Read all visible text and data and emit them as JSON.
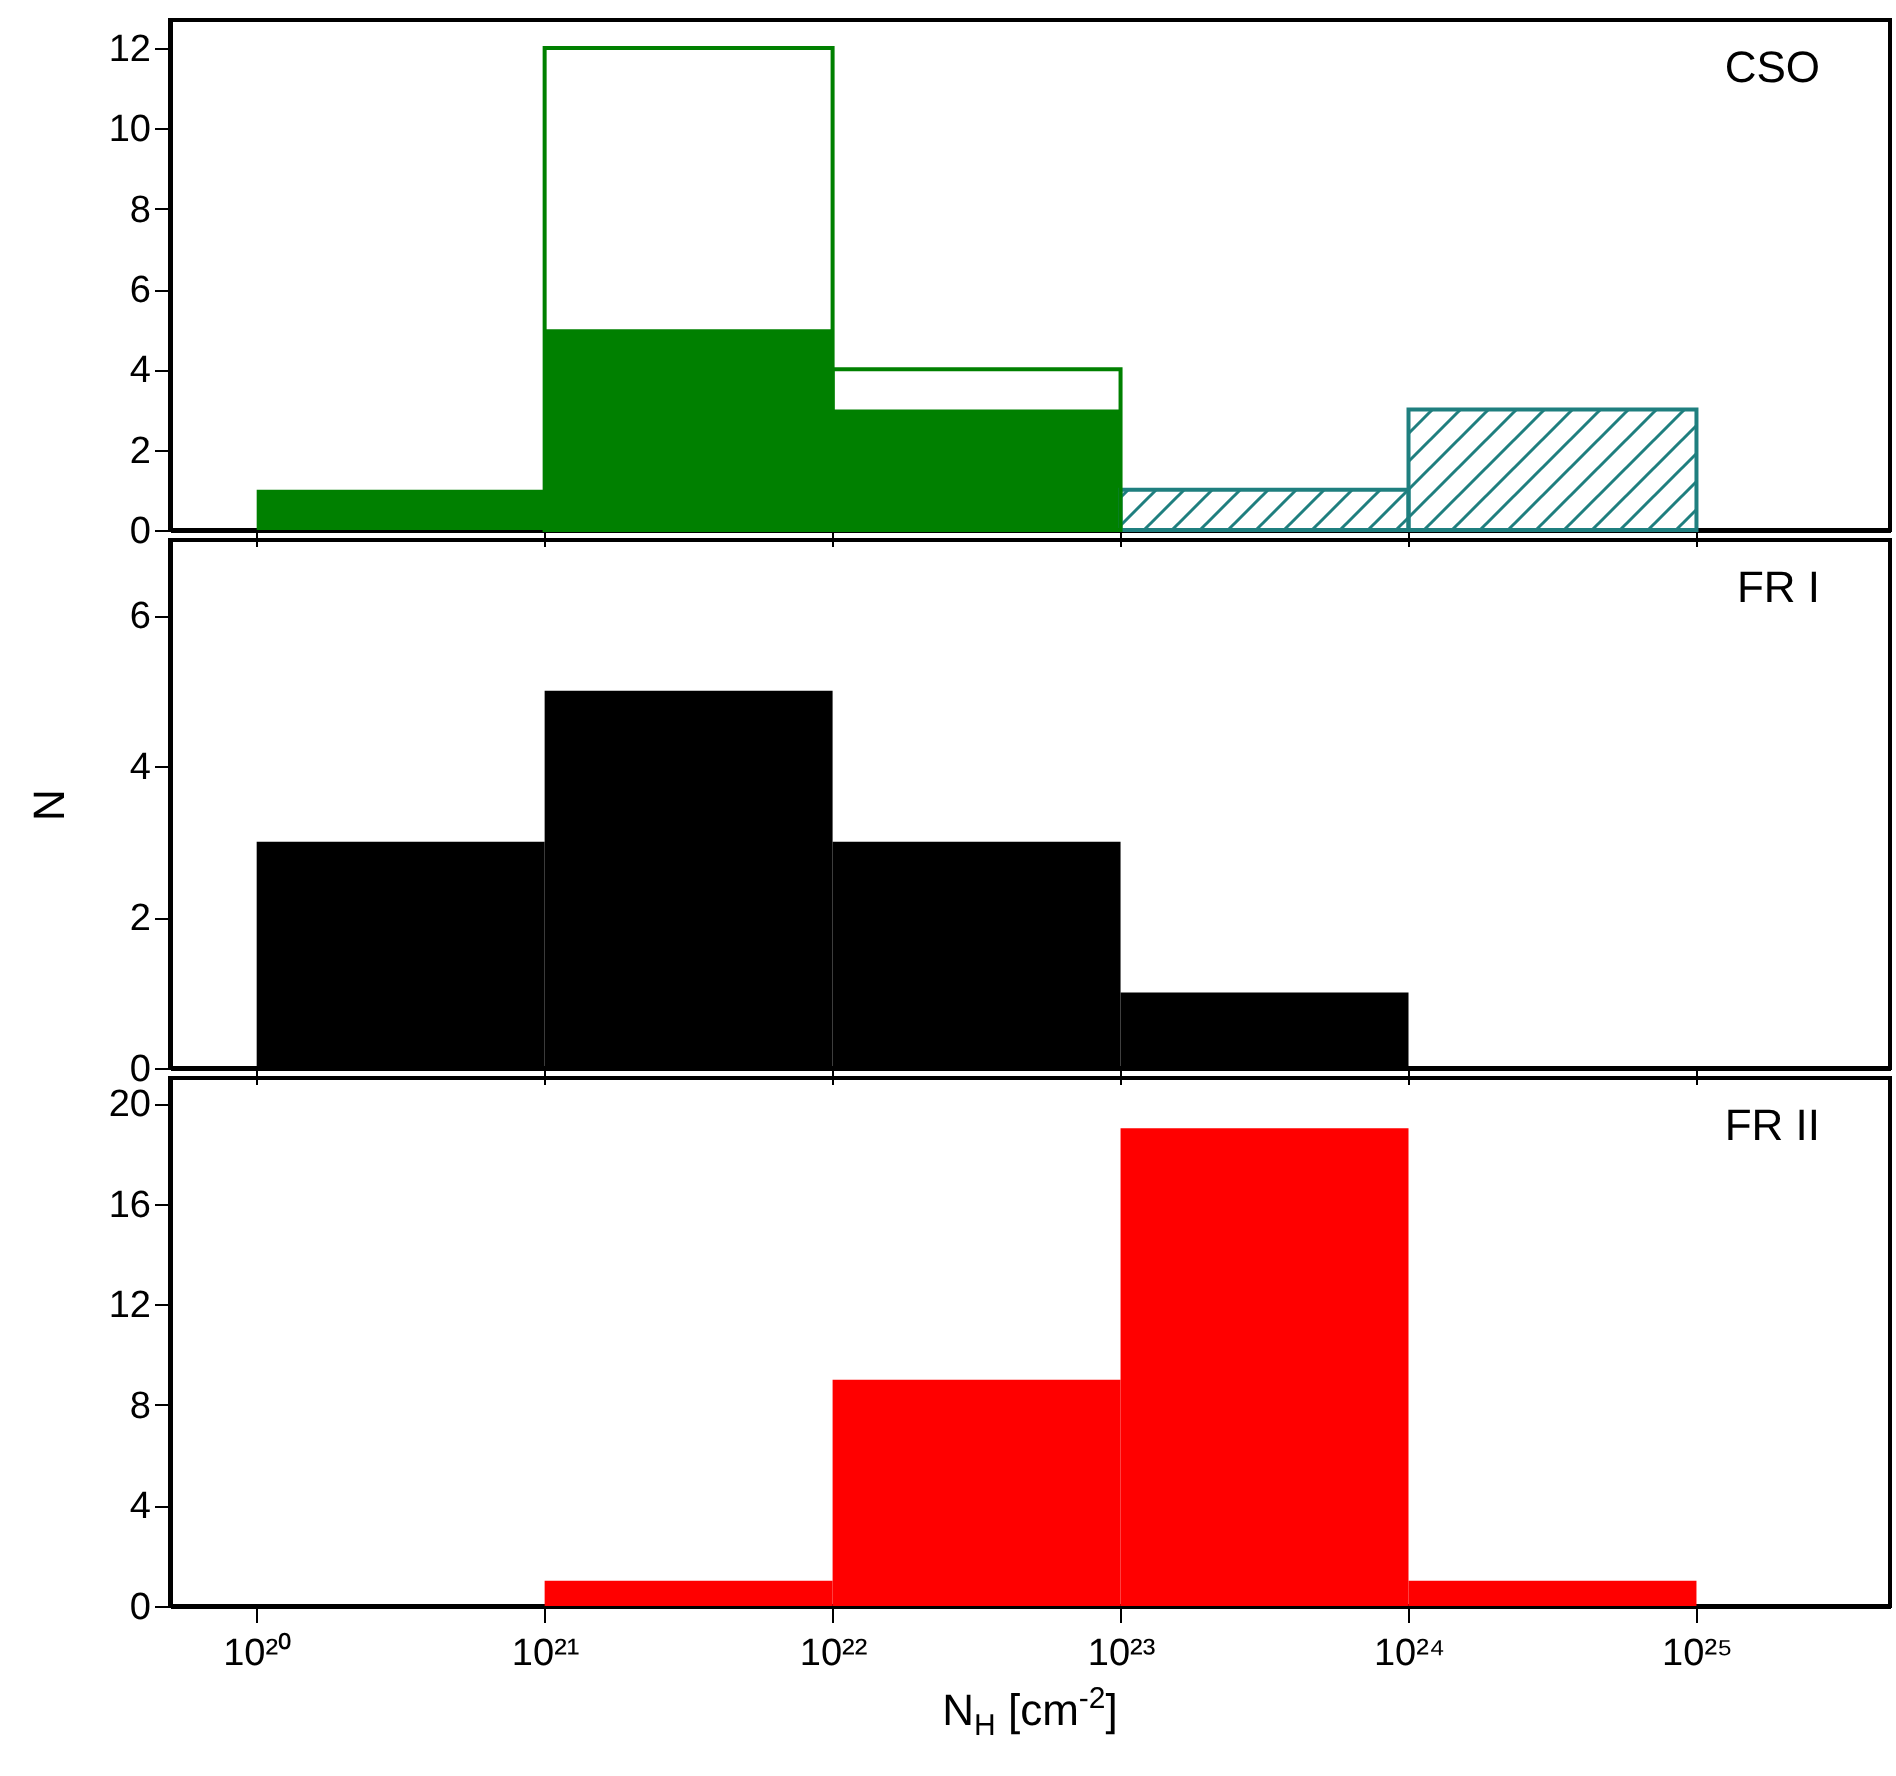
{
  "chart_data": [
    {
      "type": "histogram",
      "log": "x",
      "bins": [
        1e+20,
        1e+21,
        1e+22,
        1e+23,
        1e+24,
        1e+25
      ],
      "xlim": [
        5e+19,
        4.7e+25
      ],
      "xticks": [
        1e+20,
        1e+21,
        1e+22,
        1e+23,
        1e+24,
        1e+25
      ],
      "ylim": [
        0,
        12.7
      ],
      "yticks": [
        0,
        2,
        4,
        6,
        8,
        10,
        12
      ],
      "tick_labels": "y",
      "annotations": [
        "CSO"
      ],
      "series": [
        {
          "type": "histogram",
          "color": "#008000",
          "values": [
            1,
            5,
            3,
            null,
            null
          ]
        },
        {
          "type": "histogram",
          "color": "#1f7f7f",
          "values": [
            null,
            null,
            null,
            1,
            3
          ]
        },
        {
          "type": "histogram",
          "color": "#008000",
          "values": [
            null,
            12,
            4,
            null,
            null
          ]
        }
      ]
    },
    {
      "type": "histogram",
      "log": "x",
      "bins": [
        1e+20,
        1e+21,
        1e+22,
        1e+23,
        1e+24
      ],
      "xlim": [
        5e+19,
        4.7e+25
      ],
      "xticks": [
        1e+20,
        1e+21,
        1e+22,
        1e+23,
        1e+24,
        1e+25
      ],
      "ylim": [
        0,
        7
      ],
      "yticks": [
        0,
        2,
        4,
        6
      ],
      "tick_labels": "y",
      "ylabel": "N",
      "annotations": [
        "FR I"
      ],
      "series": [
        {
          "type": "histogram",
          "color": "#000000",
          "values": [
            3,
            5,
            3,
            1
          ]
        }
      ]
    },
    {
      "type": "histogram",
      "log": "x",
      "bins": [
        1e+21,
        1e+22,
        1e+23,
        1e+24,
        1e+25
      ],
      "xlim": [
        5e+19,
        4.7e+25
      ],
      "xticks": [
        {
          "value": 1e+20,
          "label": "10²⁰"
        },
        {
          "value": 1e+21,
          "label": "10²¹"
        },
        {
          "value": 1e+22,
          "label": "10²²"
        },
        {
          "value": 1e+23,
          "label": "10²³"
        },
        {
          "value": 1e+24,
          "label": "10²⁴"
        },
        {
          "value": 1e+25,
          "label": "10²⁵"
        }
      ],
      "ylim": [
        0,
        21
      ],
      "yticks": [
        0,
        4,
        8,
        12,
        16,
        20
      ],
      "xlabel": "N$_{H}$ [cm$^{-2}$]",
      "annotations": [
        "FR II"
      ],
      "series": [
        {
          "type": "histogram",
          "color": "#ff0000",
          "values": [
            1,
            9,
            19,
            1
          ]
        }
      ]
    }
  ]
}
